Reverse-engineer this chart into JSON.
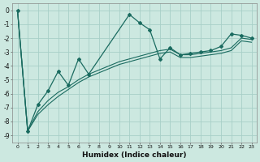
{
  "xlabel": "Humidex (Indice chaleur)",
  "bg_color": "#cce8e0",
  "grid_color": "#a8cfc8",
  "line_color": "#1a6b60",
  "xlim": [
    -0.5,
    23.5
  ],
  "ylim": [
    -9.5,
    0.5
  ],
  "yticks": [
    0,
    -1,
    -2,
    -3,
    -4,
    -5,
    -6,
    -7,
    -8,
    -9
  ],
  "xticks": [
    0,
    1,
    2,
    3,
    4,
    5,
    6,
    7,
    8,
    9,
    10,
    11,
    12,
    13,
    14,
    15,
    16,
    17,
    18,
    19,
    20,
    21,
    22,
    23
  ],
  "curve1_x": [
    0,
    1,
    2,
    3,
    4,
    5,
    6,
    7,
    11,
    12,
    13,
    14,
    15,
    16,
    17,
    18,
    19,
    20,
    21,
    22,
    23
  ],
  "curve1_y": [
    0.0,
    -8.7,
    -6.8,
    -5.8,
    -4.4,
    -5.4,
    -3.5,
    -4.6,
    -0.3,
    -0.9,
    -1.4,
    -3.5,
    -2.7,
    -3.2,
    -3.1,
    -3.0,
    -2.9,
    -2.6,
    -1.7,
    -1.8,
    -2.0
  ],
  "curve2_x": [
    0,
    1,
    2,
    3,
    4,
    5,
    6,
    7,
    8,
    9,
    10,
    11,
    12,
    13,
    14,
    15,
    16,
    17,
    18,
    19,
    20,
    21,
    22,
    23
  ],
  "curve2_y": [
    0.0,
    -8.7,
    -7.3,
    -6.5,
    -5.9,
    -5.5,
    -5.0,
    -4.6,
    -4.3,
    -4.0,
    -3.7,
    -3.5,
    -3.3,
    -3.1,
    -2.9,
    -2.8,
    -3.2,
    -3.2,
    -3.1,
    -3.0,
    -2.9,
    -2.7,
    -2.0,
    -2.1
  ],
  "curve3_x": [
    0,
    1,
    2,
    3,
    4,
    5,
    6,
    7,
    8,
    9,
    10,
    11,
    12,
    13,
    14,
    15,
    16,
    17,
    18,
    19,
    20,
    21,
    22,
    23
  ],
  "curve3_y": [
    0.0,
    -8.7,
    -7.5,
    -6.8,
    -6.2,
    -5.7,
    -5.2,
    -4.8,
    -4.5,
    -4.2,
    -3.9,
    -3.7,
    -3.5,
    -3.3,
    -3.1,
    -3.0,
    -3.4,
    -3.4,
    -3.3,
    -3.2,
    -3.1,
    -2.9,
    -2.2,
    -2.3
  ]
}
